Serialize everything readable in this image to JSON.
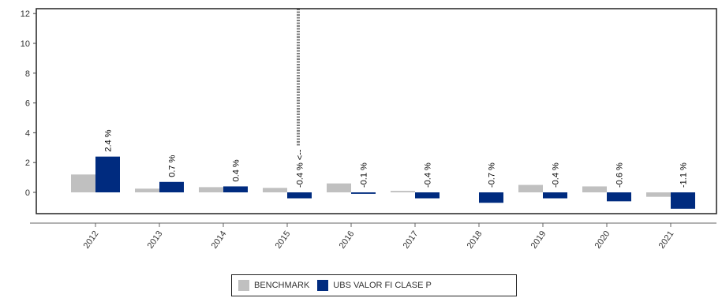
{
  "chart_data": {
    "type": "bar",
    "categories": [
      "2012",
      "2013",
      "2014",
      "2015",
      "2016",
      "2017",
      "2018",
      "2019",
      "2020",
      "2021"
    ],
    "series": [
      {
        "name": "BENCHMARK",
        "color": "#c0c0c0",
        "values": [
          1.2,
          0.25,
          0.35,
          0.3,
          0.6,
          0.1,
          0.0,
          0.5,
          0.4,
          -0.3
        ]
      },
      {
        "name": "UBS VALOR FI CLASE P",
        "color": "#002b7f",
        "values": [
          2.4,
          0.7,
          0.4,
          -0.4,
          -0.1,
          -0.4,
          -0.7,
          -0.4,
          -0.6,
          -1.1
        ],
        "labels": [
          "2.4 %",
          "0.7 %",
          "0.4 %",
          "-0.4 % <--",
          "-0.1 %",
          "-0.4 %",
          "-0.7 %",
          "-0.4 %",
          "-0.6 %",
          "-1.1 %"
        ]
      }
    ],
    "yticks": [
      "0",
      "2",
      "4",
      "6",
      "8",
      "10",
      "12"
    ],
    "ylim": [
      -1.5,
      12.5
    ],
    "marker_category": "2015",
    "grid": false,
    "legend_position": "bottom-center"
  }
}
